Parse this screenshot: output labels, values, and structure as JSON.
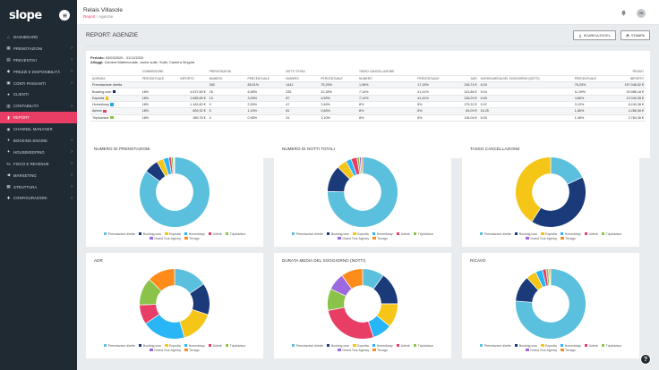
{
  "app": {
    "logo": "slope",
    "hotel_name": "Relais Villasole",
    "breadcrumb_root": "Report",
    "breadcrumb_sep": "/",
    "breadcrumb_current": "Agenzie",
    "avatar_initials": "VS"
  },
  "sidebar": {
    "items": [
      {
        "label": "Dashboard",
        "icon": "home-icon",
        "chevron": false,
        "active": false
      },
      {
        "label": "Prenotazioni",
        "icon": "calendar-icon",
        "chevron": true,
        "active": false
      },
      {
        "label": "Preventivi",
        "icon": "file-icon",
        "chevron": true,
        "active": false
      },
      {
        "label": "Prezzi e disponibilità",
        "icon": "tag-icon",
        "chevron": true,
        "active": false
      },
      {
        "label": "Conti passanti",
        "icon": "wallet-icon",
        "chevron": true,
        "active": false
      },
      {
        "label": "Clienti",
        "icon": "users-icon",
        "chevron": false,
        "active": false
      },
      {
        "label": "Contabilità",
        "icon": "calculator-icon",
        "chevron": true,
        "active": false
      },
      {
        "label": "Report",
        "icon": "chart-icon",
        "chevron": false,
        "active": true
      },
      {
        "label": "Channel manager",
        "icon": "globe-icon",
        "chevron": false,
        "active": false
      },
      {
        "label": "Booking engine",
        "icon": "cart-icon",
        "chevron": true,
        "active": false
      },
      {
        "label": "Housekeeping",
        "icon": "broom-icon",
        "chevron": true,
        "active": false
      },
      {
        "label": "Fisco e revenue",
        "icon": "percent-icon",
        "chevron": true,
        "active": false
      },
      {
        "label": "Marketing",
        "icon": "megaphone-icon",
        "chevron": true,
        "active": false
      },
      {
        "label": "Struttura",
        "icon": "building-icon",
        "chevron": true,
        "active": false
      },
      {
        "label": "Configurazioni",
        "icon": "wrench-icon",
        "chevron": true,
        "active": false
      }
    ]
  },
  "page": {
    "title": "Report: Agenzie",
    "btn_excel": "Scarica excel",
    "btn_print": "Stampa",
    "period_label": "Periodo:",
    "period_value": "03/03/2020 - 31/12/2020",
    "rooms_label": "Alloggi:",
    "rooms_value": "Camera Matrimoniale, Junior suite, Suite, Camera Singola"
  },
  "table": {
    "group_headers": [
      "",
      "Commissione",
      "",
      "Prenotazioni",
      "",
      "Notti totali",
      "",
      "Tasso cancellazione",
      "",
      "",
      "",
      "",
      "Ricavo"
    ],
    "headers": [
      "Agenzia",
      "Percentuale",
      "Importo",
      "Numero",
      "Percentuale",
      "Numero",
      "Percentuale",
      "Numero",
      "Percentuale",
      "ADR",
      "Durata media del soggiorno (notti)",
      "Percentuale",
      "Importo"
    ],
    "rows": [
      {
        "agency": "Prenotazione diretta",
        "dot": "",
        "comm_pct": "",
        "comm_amt": "",
        "pren_num": "260",
        "pren_pct": "85,51%",
        "notti_num": "1441",
        "notti_pct": "75,29%",
        "canc_num": "",
        "canc_pct": "",
        "canc_num2": "1,96%",
        "canc_pct2": "17,19%",
        "adr": "136,74 €",
        "durata": "6.00",
        "ric_pct": "76,25%",
        "ric_amt": "197.048,52 €"
      },
      {
        "agency": "Booking.com",
        "dot": "#1a237e",
        "comm_pct": "18%",
        "comm_amt": "4.037,69 €",
        "pren_num": "26",
        "pren_pct": "6,58%",
        "notti_num": "235",
        "notti_pct": "12,28%",
        "canc_num2": "7,14%",
        "canc_pct2": "41,41%",
        "adr": "131,86 €",
        "durata": "9.04",
        "ric_pct": "11,99%",
        "ric_amt": "30.985,18 €"
      },
      {
        "agency": "Expedia",
        "dot": "#f4c20d",
        "comm_pct": "18%",
        "comm_amt": "1.685,65 €",
        "pren_num": "13",
        "pren_pct": "3,09%",
        "notti_num": "87",
        "notti_pct": "4,55%",
        "canc_num2": "7,14%",
        "canc_pct2": "41,41%",
        "adr": "138,29 €",
        "durata": "6.69",
        "ric_pct": "4,66%",
        "ric_amt": "12.040,28 €"
      },
      {
        "agency": "HomeAway",
        "dot": "#26a6e0",
        "comm_pct": "18%",
        "comm_amt": "1.163,60 €",
        "pren_num": "9",
        "pren_pct": "2,59%",
        "notti_num": "47",
        "notti_pct": "2,46%",
        "canc_num2": "8%",
        "canc_pct2": "8%",
        "adr": "175,32 €",
        "durata": "5.22",
        "ric_pct": "3,19%",
        "ric_amt": "8.240,38 €"
      },
      {
        "agency": "Airbnb",
        "dot": "#e83e66",
        "comm_pct": "18%",
        "comm_amt": "609,32 €",
        "pren_num": "5",
        "pren_pct": "1,19%",
        "notti_num": "81",
        "notti_pct": "2,66%",
        "canc_num2": "8%",
        "canc_pct2": "8%",
        "adr": "84,09 €",
        "durata": "16.25",
        "ric_pct": "1,66%",
        "ric_amt": "4.286,08 €"
      },
      {
        "agency": "TripAdvisor",
        "dot": "#8bc34a",
        "comm_pct": "18%",
        "comm_amt": "389,76 €",
        "pren_num": "4",
        "pren_pct": "0,95%",
        "notti_num": "24",
        "notti_pct": "1,10%",
        "canc_num2": "8%",
        "canc_pct2": "8%",
        "adr": "116,04 €",
        "durata": "6.00",
        "ric_pct": "1,08%",
        "ric_amt": "2.784,38 €"
      }
    ]
  },
  "legend": [
    {
      "label": "Prenotazioni dirette",
      "color": "#5bc0de"
    },
    {
      "label": "Booking.com",
      "color": "#1a3a7a"
    },
    {
      "label": "Expedia",
      "color": "#f5c518"
    },
    {
      "label": "HomeAway",
      "color": "#29b6f6"
    },
    {
      "label": "Airbnb",
      "color": "#e83e66"
    },
    {
      "label": "TripAdvisor",
      "color": "#8bc34a"
    },
    {
      "label": "Grand Tour Agency",
      "color": "#9c6ade"
    },
    {
      "label": "Trivago",
      "color": "#ff8c1a"
    }
  ],
  "charts": [
    {
      "title": "Numero di prenotazioni",
      "values": [
        85.5,
        6.6,
        3.1,
        2.6,
        1.2,
        0.9,
        0.3,
        0.3
      ]
    },
    {
      "title": "Numero di notti totali",
      "values": [
        75.3,
        12.3,
        4.6,
        2.5,
        2.7,
        1.1,
        0.8,
        0.7
      ]
    },
    {
      "title": "Tasso cancellazione",
      "values": [
        18,
        41,
        41,
        0,
        0,
        0,
        0,
        0
      ]
    },
    {
      "title": "ADR",
      "values": [
        17,
        16,
        17,
        22,
        10,
        14,
        0,
        14
      ]
    },
    {
      "title": "Durata media del soggiorno (notti)",
      "values": [
        10,
        15,
        11,
        9,
        27,
        10,
        8,
        10
      ]
    },
    {
      "title": "Ricavo",
      "values": [
        76.3,
        12.0,
        4.7,
        3.2,
        1.7,
        1.1,
        0.5,
        0.5
      ]
    }
  ],
  "help": "?"
}
